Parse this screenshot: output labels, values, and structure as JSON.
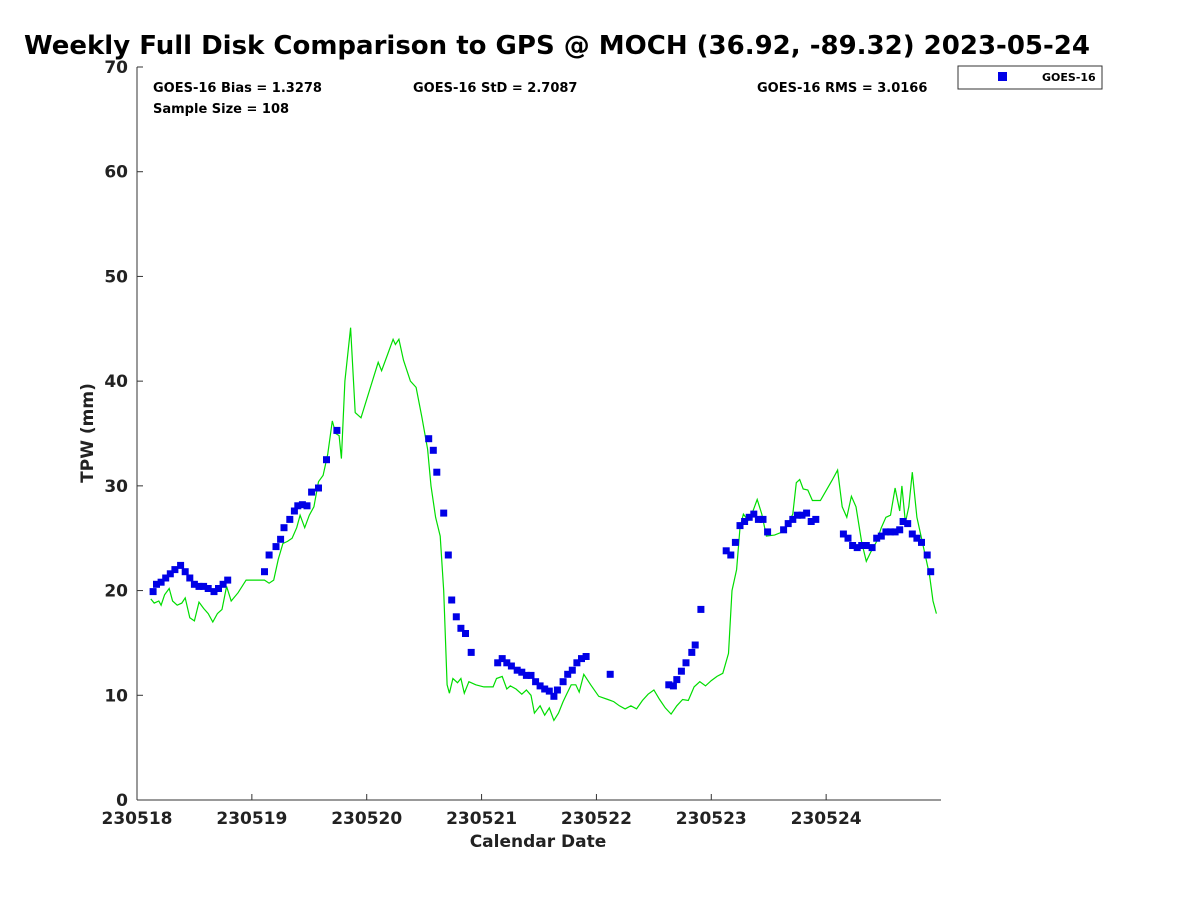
{
  "chart_data": {
    "type": "scatter",
    "title": "Weekly Full Disk Comparison to GPS @ MOCH (36.92, -89.32) 2023-05-24",
    "xlabel": "Calendar Date",
    "ylabel": "TPW (mm)",
    "xlim": [
      230518,
      230525
    ],
    "ylim": [
      0,
      70
    ],
    "x_ticks": [
      {
        "value": 230518,
        "label": "230518"
      },
      {
        "value": 230519,
        "label": "230519"
      },
      {
        "value": 230520,
        "label": "230520"
      },
      {
        "value": 230521,
        "label": "230521"
      },
      {
        "value": 230522,
        "label": "230522"
      },
      {
        "value": 230523,
        "label": "230523"
      },
      {
        "value": 230524,
        "label": "230524"
      }
    ],
    "y_ticks": [
      0,
      10,
      20,
      30,
      40,
      50,
      60,
      70
    ],
    "grid": false,
    "legend_position": "top-right outside",
    "stats": {
      "bias": "GOES-16 Bias = 1.3278",
      "sample": "Sample Size = 108",
      "std": "GOES-16 StD = 2.7087",
      "rms": "GOES-16 RMS = 3.0166"
    },
    "series": [
      {
        "name": "GOES-16",
        "kind": "markers",
        "color": "#0000e6",
        "points": [
          [
            230518.14,
            19.9
          ],
          [
            230518.17,
            20.6
          ],
          [
            230518.21,
            20.8
          ],
          [
            230518.25,
            21.2
          ],
          [
            230518.29,
            21.6
          ],
          [
            230518.33,
            22.0
          ],
          [
            230518.38,
            22.4
          ],
          [
            230518.42,
            21.8
          ],
          [
            230518.46,
            21.2
          ],
          [
            230518.5,
            20.6
          ],
          [
            230518.54,
            20.4
          ],
          [
            230518.58,
            20.4
          ],
          [
            230518.62,
            20.2
          ],
          [
            230518.67,
            19.9
          ],
          [
            230518.71,
            20.2
          ],
          [
            230518.75,
            20.6
          ],
          [
            230518.79,
            21.0
          ],
          [
            230519.11,
            21.8
          ],
          [
            230519.15,
            23.4
          ],
          [
            230519.21,
            24.2
          ],
          [
            230519.25,
            24.9
          ],
          [
            230519.28,
            26.0
          ],
          [
            230519.33,
            26.8
          ],
          [
            230519.37,
            27.6
          ],
          [
            230519.4,
            28.1
          ],
          [
            230519.44,
            28.2
          ],
          [
            230519.48,
            28.1
          ],
          [
            230519.52,
            29.4
          ],
          [
            230519.58,
            29.8
          ],
          [
            230519.65,
            32.5
          ],
          [
            230519.74,
            35.3
          ],
          [
            230520.54,
            34.5
          ],
          [
            230520.58,
            33.4
          ],
          [
            230520.61,
            31.3
          ],
          [
            230520.67,
            27.4
          ],
          [
            230520.71,
            23.4
          ],
          [
            230520.74,
            19.1
          ],
          [
            230520.78,
            17.5
          ],
          [
            230520.82,
            16.4
          ],
          [
            230520.86,
            15.9
          ],
          [
            230520.91,
            14.1
          ],
          [
            230521.14,
            13.1
          ],
          [
            230521.18,
            13.5
          ],
          [
            230521.22,
            13.1
          ],
          [
            230521.26,
            12.8
          ],
          [
            230521.31,
            12.4
          ],
          [
            230521.35,
            12.2
          ],
          [
            230521.39,
            11.9
          ],
          [
            230521.43,
            11.9
          ],
          [
            230521.47,
            11.3
          ],
          [
            230521.51,
            10.9
          ],
          [
            230521.55,
            10.6
          ],
          [
            230521.59,
            10.4
          ],
          [
            230521.63,
            9.9
          ],
          [
            230521.66,
            10.5
          ],
          [
            230521.71,
            11.3
          ],
          [
            230521.75,
            12.0
          ],
          [
            230521.79,
            12.4
          ],
          [
            230521.83,
            13.1
          ],
          [
            230521.87,
            13.5
          ],
          [
            230521.91,
            13.7
          ],
          [
            230522.12,
            12.0
          ],
          [
            230522.63,
            11.0
          ],
          [
            230522.67,
            10.9
          ],
          [
            230522.7,
            11.5
          ],
          [
            230522.74,
            12.3
          ],
          [
            230522.78,
            13.1
          ],
          [
            230522.83,
            14.1
          ],
          [
            230522.86,
            14.8
          ],
          [
            230522.91,
            18.2
          ],
          [
            230523.13,
            23.8
          ],
          [
            230523.17,
            23.4
          ],
          [
            230523.21,
            24.6
          ],
          [
            230523.25,
            26.2
          ],
          [
            230523.29,
            26.6
          ],
          [
            230523.33,
            27.0
          ],
          [
            230523.37,
            27.3
          ],
          [
            230523.41,
            26.8
          ],
          [
            230523.45,
            26.8
          ],
          [
            230523.49,
            25.6
          ],
          [
            230523.63,
            25.8
          ],
          [
            230523.67,
            26.4
          ],
          [
            230523.71,
            26.8
          ],
          [
            230523.75,
            27.2
          ],
          [
            230523.79,
            27.2
          ],
          [
            230523.83,
            27.4
          ],
          [
            230523.87,
            26.6
          ],
          [
            230523.91,
            26.8
          ],
          [
            230524.15,
            25.4
          ],
          [
            230524.19,
            25.0
          ],
          [
            230524.23,
            24.3
          ],
          [
            230524.27,
            24.1
          ],
          [
            230524.31,
            24.3
          ],
          [
            230524.35,
            24.3
          ],
          [
            230524.4,
            24.1
          ],
          [
            230524.44,
            25.0
          ],
          [
            230524.48,
            25.2
          ],
          [
            230524.52,
            25.6
          ],
          [
            230524.56,
            25.6
          ],
          [
            230524.6,
            25.6
          ],
          [
            230524.64,
            25.8
          ],
          [
            230524.67,
            26.6
          ],
          [
            230524.71,
            26.4
          ],
          [
            230524.75,
            25.4
          ],
          [
            230524.79,
            25.0
          ],
          [
            230524.83,
            24.6
          ],
          [
            230524.88,
            23.4
          ],
          [
            230524.91,
            21.8
          ]
        ]
      },
      {
        "kind": "line",
        "color": "#00dd00",
        "points": [
          [
            230518.12,
            19.2
          ],
          [
            230518.15,
            18.8
          ],
          [
            230518.19,
            19.0
          ],
          [
            230518.21,
            18.6
          ],
          [
            230518.24,
            19.6
          ],
          [
            230518.28,
            20.2
          ],
          [
            230518.31,
            19.0
          ],
          [
            230518.35,
            18.6
          ],
          [
            230518.39,
            18.8
          ],
          [
            230518.42,
            19.3
          ],
          [
            230518.46,
            17.4
          ],
          [
            230518.5,
            17.1
          ],
          [
            230518.54,
            18.9
          ],
          [
            230518.58,
            18.3
          ],
          [
            230518.62,
            17.8
          ],
          [
            230518.66,
            17.0
          ],
          [
            230518.7,
            17.8
          ],
          [
            230518.74,
            18.2
          ],
          [
            230518.78,
            20.4
          ],
          [
            230518.82,
            19.0
          ],
          [
            230518.88,
            19.8
          ],
          [
            230518.95,
            21.0
          ],
          [
            230519.05,
            21.0
          ],
          [
            230519.11,
            21.0
          ],
          [
            230519.15,
            20.7
          ],
          [
            230519.19,
            21.0
          ],
          [
            230519.23,
            23.0
          ],
          [
            230519.27,
            24.5
          ],
          [
            230519.31,
            24.7
          ],
          [
            230519.35,
            25.0
          ],
          [
            230519.39,
            26.0
          ],
          [
            230519.42,
            27.2
          ],
          [
            230519.46,
            26.0
          ],
          [
            230519.5,
            27.2
          ],
          [
            230519.54,
            28.0
          ],
          [
            230519.58,
            30.4
          ],
          [
            230519.62,
            31.0
          ],
          [
            230519.66,
            33.0
          ],
          [
            230519.7,
            36.2
          ],
          [
            230519.73,
            35.0
          ],
          [
            230519.76,
            34.8
          ],
          [
            230519.78,
            32.6
          ],
          [
            230519.81,
            40.0
          ],
          [
            230519.86,
            45.1
          ],
          [
            230519.9,
            37.0
          ],
          [
            230519.95,
            36.5
          ],
          [
            230520.1,
            41.8
          ],
          [
            230520.13,
            41.0
          ],
          [
            230520.18,
            42.5
          ],
          [
            230520.23,
            44.0
          ],
          [
            230520.25,
            43.5
          ],
          [
            230520.28,
            44.0
          ],
          [
            230520.32,
            42.0
          ],
          [
            230520.38,
            40.0
          ],
          [
            230520.43,
            39.4
          ],
          [
            230520.48,
            36.6
          ],
          [
            230520.53,
            33.5
          ],
          [
            230520.56,
            30.0
          ],
          [
            230520.6,
            27.0
          ],
          [
            230520.64,
            25.2
          ],
          [
            230520.67,
            20.0
          ],
          [
            230520.7,
            11.0
          ],
          [
            230520.72,
            10.2
          ],
          [
            230520.75,
            11.6
          ],
          [
            230520.79,
            11.2
          ],
          [
            230520.82,
            11.6
          ],
          [
            230520.85,
            10.2
          ],
          [
            230520.89,
            11.3
          ],
          [
            230520.95,
            11.0
          ],
          [
            230521.02,
            10.8
          ],
          [
            230521.1,
            10.8
          ],
          [
            230521.13,
            11.6
          ],
          [
            230521.18,
            11.8
          ],
          [
            230521.22,
            10.6
          ],
          [
            230521.25,
            10.9
          ],
          [
            230521.3,
            10.6
          ],
          [
            230521.35,
            10.1
          ],
          [
            230521.39,
            10.5
          ],
          [
            230521.43,
            10.0
          ],
          [
            230521.46,
            8.3
          ],
          [
            230521.51,
            9.0
          ],
          [
            230521.55,
            8.1
          ],
          [
            230521.59,
            8.8
          ],
          [
            230521.63,
            7.6
          ],
          [
            230521.67,
            8.3
          ],
          [
            230521.71,
            9.4
          ],
          [
            230521.74,
            10.1
          ],
          [
            230521.78,
            11.0
          ],
          [
            230521.82,
            11.0
          ],
          [
            230521.85,
            10.3
          ],
          [
            230521.89,
            12.0
          ],
          [
            230521.95,
            11.0
          ],
          [
            230522.02,
            9.9
          ],
          [
            230522.1,
            9.6
          ],
          [
            230522.15,
            9.4
          ],
          [
            230522.2,
            9.0
          ],
          [
            230522.25,
            8.7
          ],
          [
            230522.3,
            9.0
          ],
          [
            230522.35,
            8.7
          ],
          [
            230522.4,
            9.5
          ],
          [
            230522.45,
            10.1
          ],
          [
            230522.5,
            10.5
          ],
          [
            230522.55,
            9.6
          ],
          [
            230522.6,
            8.8
          ],
          [
            230522.65,
            8.2
          ],
          [
            230522.7,
            9.0
          ],
          [
            230522.75,
            9.6
          ],
          [
            230522.8,
            9.5
          ],
          [
            230522.85,
            10.8
          ],
          [
            230522.9,
            11.3
          ],
          [
            230522.95,
            10.9
          ],
          [
            230523.0,
            11.4
          ],
          [
            230523.05,
            11.8
          ],
          [
            230523.1,
            12.1
          ],
          [
            230523.15,
            14.0
          ],
          [
            230523.18,
            20.0
          ],
          [
            230523.22,
            22.0
          ],
          [
            230523.25,
            26.0
          ],
          [
            230523.28,
            27.3
          ],
          [
            230523.32,
            26.7
          ],
          [
            230523.36,
            27.5
          ],
          [
            230523.4,
            28.7
          ],
          [
            230523.44,
            27.3
          ],
          [
            230523.48,
            25.2
          ],
          [
            230523.55,
            25.3
          ],
          [
            230523.62,
            25.6
          ],
          [
            230523.67,
            26.4
          ],
          [
            230523.71,
            27.3
          ],
          [
            230523.74,
            30.3
          ],
          [
            230523.77,
            30.6
          ],
          [
            230523.8,
            29.7
          ],
          [
            230523.84,
            29.6
          ],
          [
            230523.88,
            28.6
          ],
          [
            230523.95,
            28.6
          ],
          [
            230524.05,
            30.5
          ],
          [
            230524.1,
            31.5
          ],
          [
            230524.14,
            28.0
          ],
          [
            230524.18,
            27.0
          ],
          [
            230524.22,
            29.0
          ],
          [
            230524.26,
            28.0
          ],
          [
            230524.31,
            24.6
          ],
          [
            230524.35,
            22.8
          ],
          [
            230524.39,
            23.7
          ],
          [
            230524.44,
            24.7
          ],
          [
            230524.48,
            26.0
          ],
          [
            230524.52,
            27.0
          ],
          [
            230524.56,
            27.2
          ],
          [
            230524.6,
            29.8
          ],
          [
            230524.64,
            27.6
          ],
          [
            230524.66,
            30.0
          ],
          [
            230524.69,
            26.5
          ],
          [
            230524.72,
            28.0
          ],
          [
            230524.75,
            31.3
          ],
          [
            230524.79,
            27.0
          ],
          [
            230524.83,
            25.0
          ],
          [
            230524.87,
            23.0
          ],
          [
            230524.9,
            21.5
          ],
          [
            230524.93,
            19.0
          ],
          [
            230524.96,
            17.8
          ]
        ]
      }
    ]
  }
}
